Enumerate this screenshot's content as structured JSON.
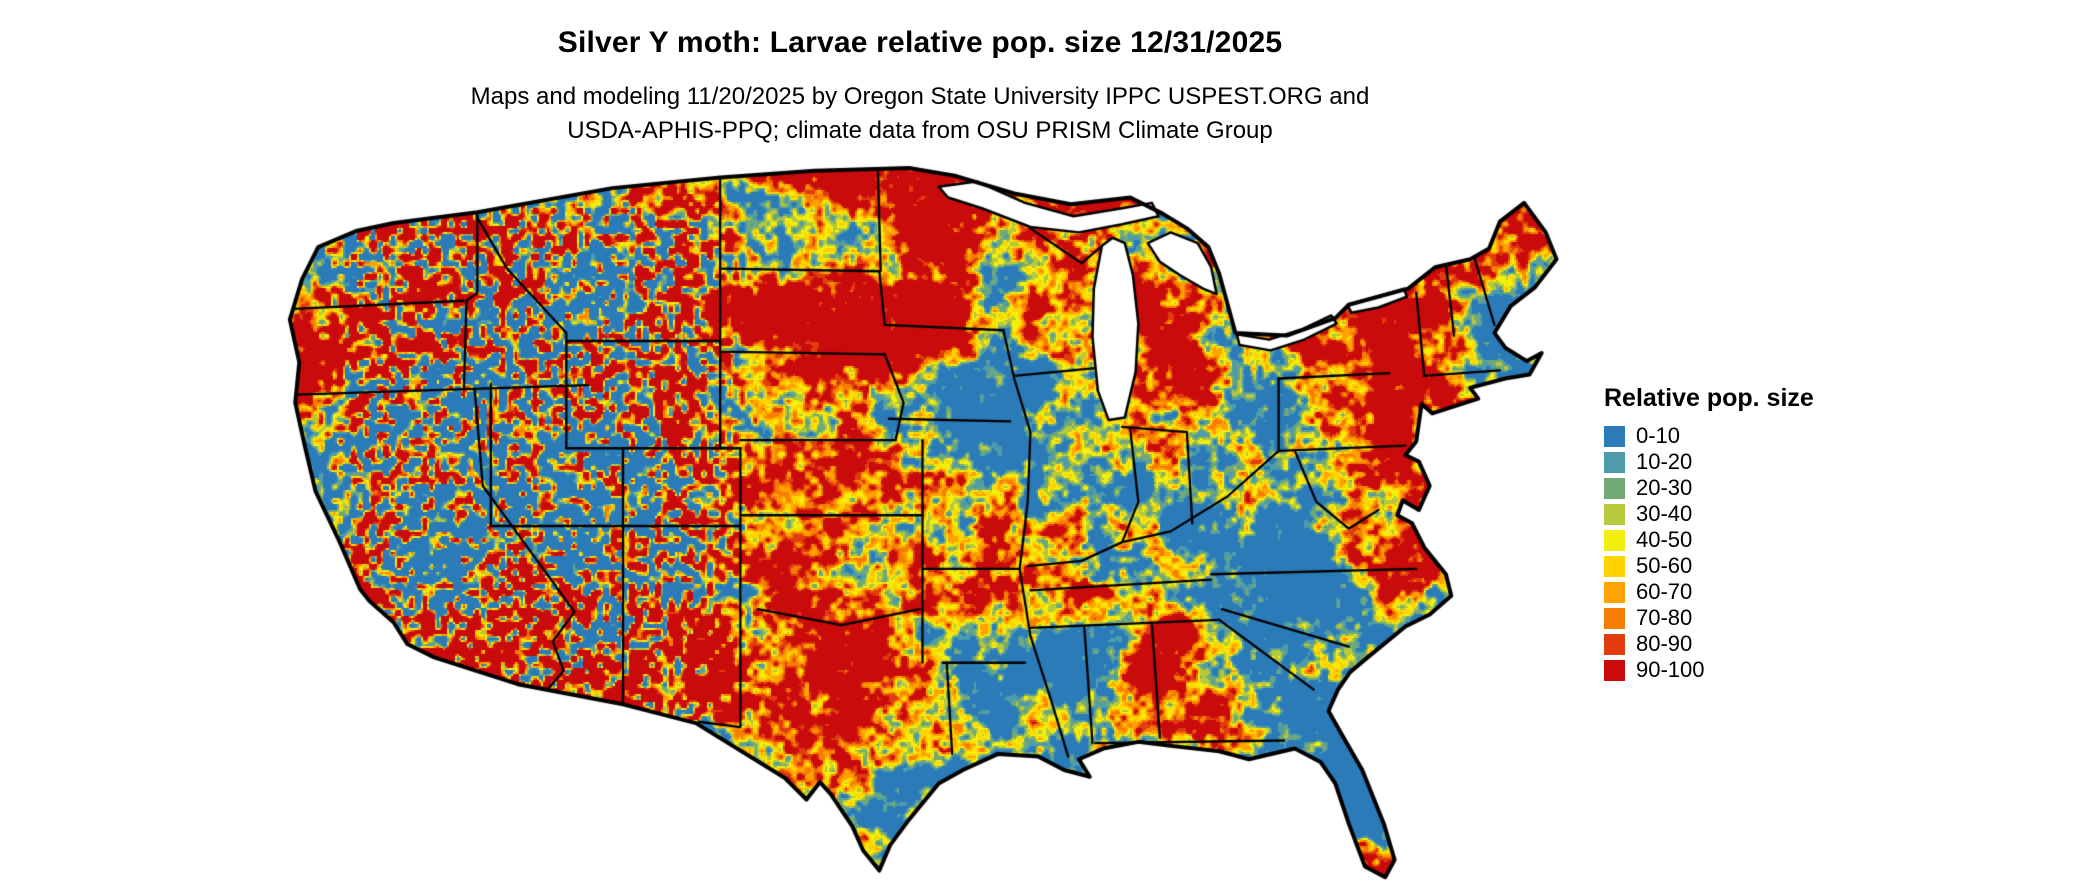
{
  "header": {
    "title": "Silver Y moth: Larvae relative pop. size 12/31/2025",
    "subtitle_line1": "Maps and modeling 11/20/2025 by Oregon State University IPPC USPEST.ORG and",
    "subtitle_line2": "USDA-APHIS-PPQ; climate data from OSU PRISM Climate Group"
  },
  "legend": {
    "title": "Relative pop. size",
    "bins": [
      {
        "label": "0-10",
        "color": "#2b7bb9"
      },
      {
        "label": "10-20",
        "color": "#4d9bab"
      },
      {
        "label": "20-30",
        "color": "#71a876"
      },
      {
        "label": "30-40",
        "color": "#b5c83e"
      },
      {
        "label": "40-50",
        "color": "#f2ee0e"
      },
      {
        "label": "50-60",
        "color": "#ffd300"
      },
      {
        "label": "60-70",
        "color": "#ffa300"
      },
      {
        "label": "70-80",
        "color": "#f57d00"
      },
      {
        "label": "80-90",
        "color": "#e03c0e"
      },
      {
        "label": "90-100",
        "color": "#c90b0b"
      }
    ]
  },
  "map": {
    "outline_color": "#000000",
    "border_color": "#000000",
    "water_color": "#ffffff"
  }
}
